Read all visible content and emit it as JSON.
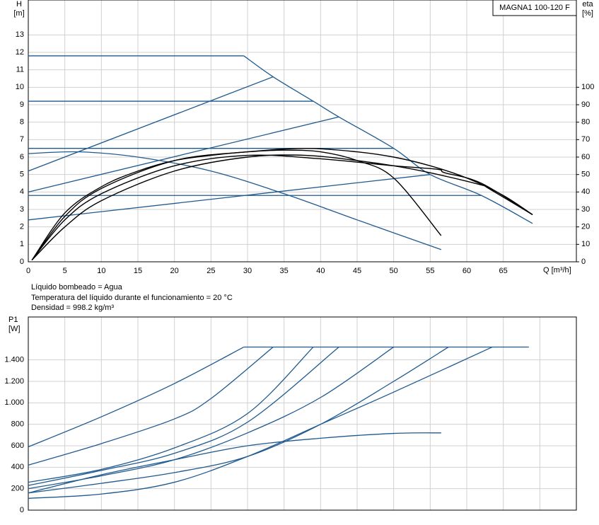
{
  "chart_data": [
    {
      "type": "line",
      "title": "MAGNA1 100-120 F",
      "ylabel": "H",
      "yunit": "[m]",
      "y2label": "eta",
      "y2unit": "[%]",
      "xlabel": "Q [m³/h]",
      "xlim": [
        0,
        75
      ],
      "xticks": [
        0,
        5,
        10,
        15,
        20,
        25,
        30,
        35,
        40,
        45,
        50,
        55,
        60,
        65
      ],
      "ylim": [
        0,
        15
      ],
      "yticks": [
        0,
        1,
        2,
        3,
        4,
        5,
        6,
        7,
        8,
        9,
        10,
        11,
        12,
        13
      ],
      "y2lim": [
        0,
        150
      ],
      "y2ticks": [
        0,
        10,
        20,
        30,
        40,
        50,
        60,
        70,
        80,
        90,
        100
      ],
      "grid": true,
      "series": [
        {
          "color": "#1f5a8f",
          "x": [
            0,
            29.5
          ],
          "values": [
            11.8,
            11.8
          ]
        },
        {
          "color": "#1f5a8f",
          "x": [
            29.5,
            33.5,
            39,
            42.5,
            50,
            55,
            62,
            69
          ],
          "values": [
            11.8,
            10.6,
            9.2,
            8.3,
            6.5,
            5.0,
            3.8,
            2.2
          ]
        },
        {
          "color": "#1f5a8f",
          "x": [
            0,
            39
          ],
          "values": [
            9.2,
            9.2
          ]
        },
        {
          "color": "#1f5a8f",
          "x": [
            0,
            50
          ],
          "values": [
            6.5,
            6.5
          ]
        },
        {
          "color": "#1f5a8f",
          "x": [
            0,
            62
          ],
          "values": [
            3.8,
            3.8
          ]
        },
        {
          "color": "#1f5a8f",
          "x": [
            0,
            33.5
          ],
          "values": [
            5.2,
            10.6
          ]
        },
        {
          "color": "#1f5a8f",
          "x": [
            0,
            42.5
          ],
          "values": [
            4.0,
            8.3
          ]
        },
        {
          "color": "#1f5a8f",
          "x": [
            0,
            55
          ],
          "values": [
            2.4,
            5.0
          ]
        },
        {
          "color": "#1f5a8f",
          "x": [
            0,
            7,
            15,
            25,
            35,
            45,
            56.5
          ],
          "values": [
            6.2,
            6.3,
            6.0,
            5.2,
            3.9,
            2.4,
            0.7
          ]
        },
        {
          "color": "#000000",
          "axis": "y2",
          "x": [
            0.5,
            5,
            10,
            15,
            20,
            25,
            30,
            35,
            40,
            45,
            50,
            56.5
          ],
          "values": [
            1,
            28,
            43,
            52,
            58,
            61,
            63,
            64,
            63,
            58,
            48,
            15
          ]
        },
        {
          "color": "#000000",
          "axis": "y2",
          "x": [
            0.5,
            5,
            10,
            20,
            30,
            38,
            45,
            50,
            55,
            60,
            65,
            69
          ],
          "values": [
            1,
            26,
            42,
            58,
            63,
            65,
            63,
            60,
            55,
            48,
            38,
            27
          ]
        },
        {
          "color": "#000000",
          "axis": "y2",
          "x": [
            0.5,
            5,
            10,
            20,
            30,
            40,
            50,
            56,
            57,
            62,
            69
          ],
          "values": [
            1,
            24,
            39,
            55,
            61,
            59,
            55,
            53,
            51,
            45,
            27
          ]
        },
        {
          "color": "#000000",
          "axis": "y2",
          "x": [
            0.5,
            5,
            10,
            20,
            30,
            38,
            45,
            50,
            55,
            62,
            63,
            69
          ],
          "values": [
            1,
            20,
            35,
            52,
            60,
            61,
            58,
            55,
            51,
            44,
            42,
            27
          ]
        }
      ],
      "notes": [
        "Líquido bombeado = Agua",
        "Temperatura del líquido durante el funcionamiento = 20 °C",
        "Densidad = 998.2 kg/m³"
      ]
    },
    {
      "type": "line",
      "ylabel": "P1",
      "yunit": "[W]",
      "xlim": [
        0,
        75
      ],
      "xticks": [
        0,
        5,
        10,
        15,
        20,
        25,
        30,
        35,
        40,
        45,
        50,
        55,
        60,
        65,
        70
      ],
      "xtick_labels": false,
      "ylim": [
        0,
        1800
      ],
      "yticks": [
        0,
        200,
        400,
        600,
        800,
        {
          "value": 1000,
          "label": "1.000"
        },
        {
          "value": 1200,
          "label": "1.200"
        },
        {
          "value": 1400,
          "label": "1.400"
        }
      ],
      "grid": true,
      "series": [
        {
          "color": "#1f5a8f",
          "x": [
            0,
            10,
            20,
            29.5
          ],
          "values": [
            590,
            870,
            1180,
            1520
          ]
        },
        {
          "color": "#1f5a8f",
          "x": [
            0,
            10,
            20,
            25,
            33.5
          ],
          "values": [
            420,
            620,
            850,
            1040,
            1520
          ]
        },
        {
          "color": "#1f5a8f",
          "x": [
            0,
            10,
            20,
            30,
            39
          ],
          "values": [
            260,
            380,
            580,
            900,
            1520
          ]
        },
        {
          "color": "#1f5a8f",
          "x": [
            0,
            10,
            20,
            30,
            42.5
          ],
          "values": [
            230,
            370,
            530,
            820,
            1520
          ]
        },
        {
          "color": "#1f5a8f",
          "x": [
            0,
            10,
            20,
            30,
            40,
            50
          ],
          "values": [
            200,
            320,
            470,
            720,
            1050,
            1520
          ]
        },
        {
          "color": "#1f5a8f",
          "x": [
            0,
            10,
            20,
            30,
            40,
            50,
            57.5
          ],
          "values": [
            160,
            250,
            350,
            500,
            800,
            1200,
            1520
          ]
        },
        {
          "color": "#1f5a8f",
          "x": [
            0,
            10,
            20,
            30,
            40,
            50,
            63.5
          ],
          "values": [
            110,
            150,
            260,
            500,
            800,
            1100,
            1520
          ]
        },
        {
          "color": "#1f5a8f",
          "x": [
            0,
            10,
            20,
            30,
            40,
            50,
            56.5
          ],
          "values": [
            160,
            330,
            470,
            600,
            670,
            715,
            720
          ]
        },
        {
          "color": "#1f5a8f",
          "x": [
            29.5,
            68.5
          ],
          "values": [
            1520,
            1520
          ]
        }
      ]
    }
  ]
}
